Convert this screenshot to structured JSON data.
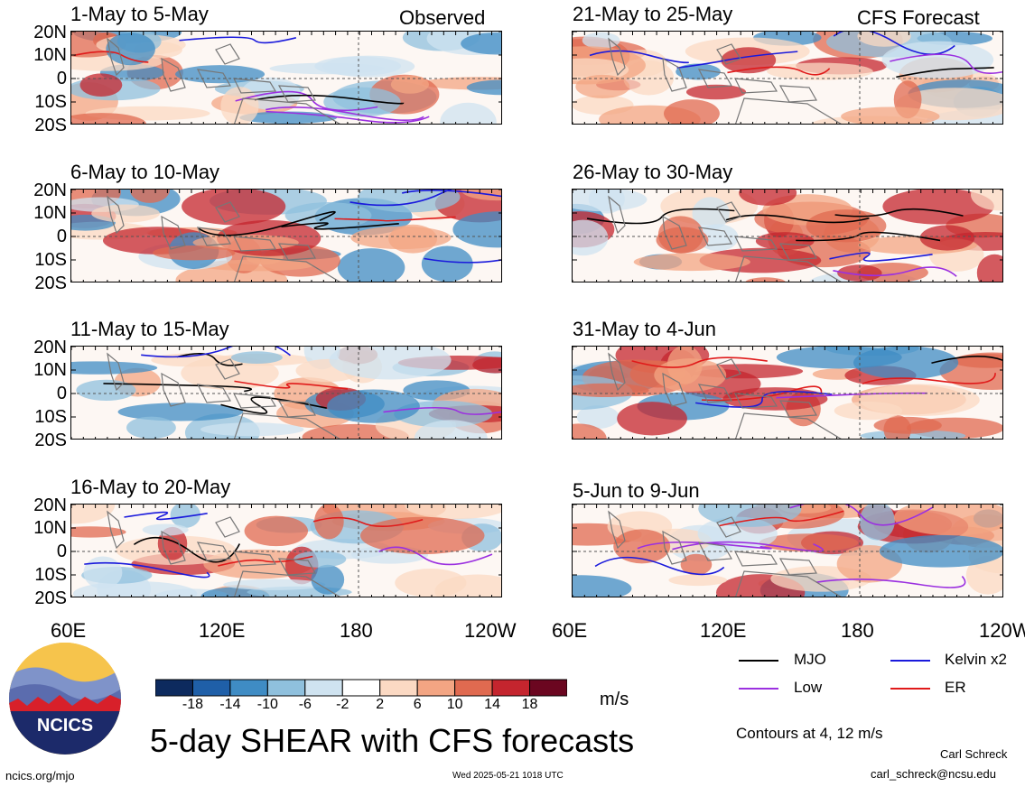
{
  "header": {
    "left_corner": "Observed",
    "right_corner": "CFS Forecast"
  },
  "panels_left": [
    {
      "title": "1-May to 5-May"
    },
    {
      "title": "6-May to 10-May"
    },
    {
      "title": "11-May to 15-May"
    },
    {
      "title": "16-May to 20-May"
    }
  ],
  "panels_right": [
    {
      "title": "21-May to 25-May"
    },
    {
      "title": "26-May to 30-May"
    },
    {
      "title": "31-May to 4-Jun"
    },
    {
      "title": "5-Jun to 9-Jun"
    }
  ],
  "latitude_labels": [
    "20N",
    "10N",
    "0",
    "10S",
    "20S"
  ],
  "longitude_labels": [
    "60E",
    "120E",
    "180",
    "120W"
  ],
  "colorbar": {
    "unit": "m/s",
    "ticks": [
      "-18",
      "-14",
      "-10",
      "-6",
      "-2",
      "2",
      "6",
      "10",
      "14",
      "18"
    ],
    "colors": [
      "#0d2a5e",
      "#1f5fa8",
      "#3f8cc4",
      "#8fc0dd",
      "#cfe3f0",
      "#ffffff",
      "#fbd9c3",
      "#f3a583",
      "#e06a50",
      "#c4252e",
      "#6b0620"
    ]
  },
  "contour_legend": {
    "items": [
      {
        "label": "MJO",
        "color": "#000000"
      },
      {
        "label": "Kelvin x2",
        "color": "#1a1adc"
      },
      {
        "label": "Low",
        "color": "#9b30e0"
      },
      {
        "label": "ER",
        "color": "#e01a1a"
      }
    ],
    "note": "Contours at 4, 12 m/s"
  },
  "title": "5-day SHEAR with CFS forecasts",
  "logo_text": "NCICS",
  "footer": {
    "url": "ncics.org/mjo",
    "timestamp": "Wed 2025-05-21 1018 UTC",
    "author": "Carl Schreck",
    "email": "carl_schreck@ncsu.edu"
  }
}
